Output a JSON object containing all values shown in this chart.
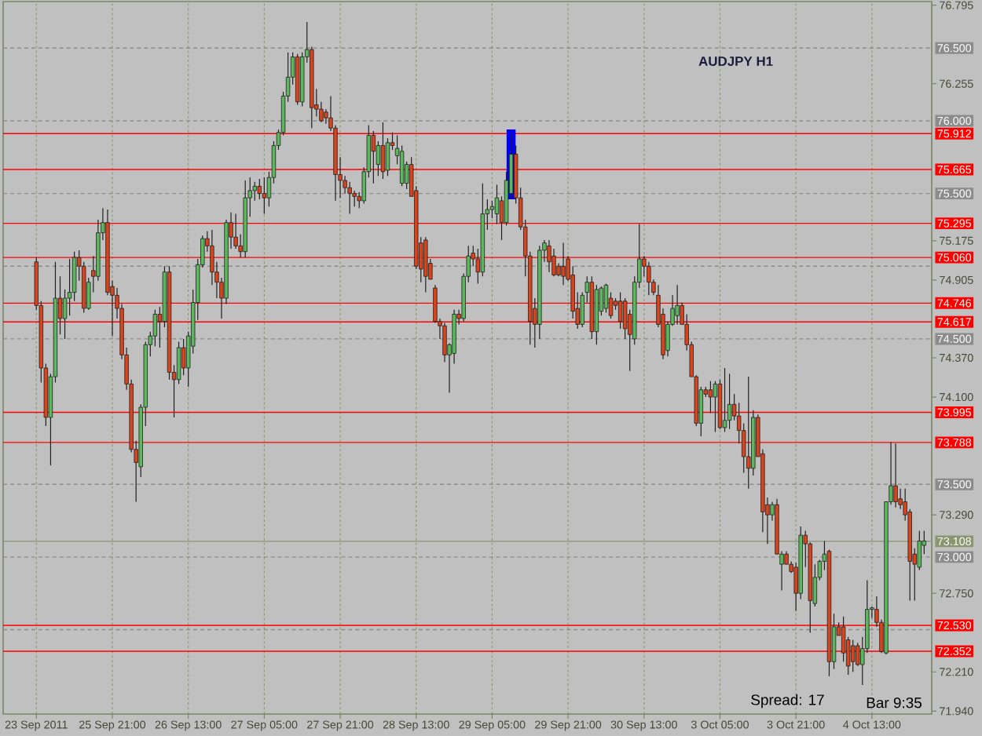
{
  "chart_data": {
    "type": "candlestick",
    "title": "AUDJPY H1",
    "annotations": [
      "Spread: 17",
      "Bar 9:35"
    ],
    "categories": [
      "23 Sep 2011",
      null,
      null,
      null,
      null,
      null,
      null,
      null,
      null,
      null,
      null,
      null,
      null,
      null,
      null,
      null,
      "25 Sep 21:00",
      null,
      null,
      null,
      null,
      null,
      null,
      null,
      null,
      null,
      null,
      null,
      null,
      null,
      null,
      null,
      "26 Sep 13:00",
      null,
      null,
      null,
      null,
      null,
      null,
      null,
      null,
      null,
      null,
      null,
      null,
      null,
      null,
      null,
      "27 Sep 05:00",
      null,
      null,
      null,
      null,
      null,
      null,
      null,
      null,
      null,
      null,
      null,
      null,
      null,
      null,
      null,
      "27 Sep 21:00",
      null,
      null,
      null,
      null,
      null,
      null,
      null,
      null,
      null,
      null,
      null,
      null,
      null,
      null,
      null,
      "28 Sep 13:00",
      null,
      null,
      null,
      null,
      null,
      null,
      null,
      null,
      null,
      null,
      null,
      null,
      null,
      null,
      null,
      "29 Sep 05:00",
      null,
      null,
      null,
      null,
      null,
      null,
      null,
      null,
      null,
      null,
      null,
      null,
      null,
      null,
      null,
      "29 Sep 21:00",
      null,
      null,
      null,
      null,
      null,
      null,
      null,
      null,
      null,
      null,
      null,
      null,
      null,
      null,
      null,
      "30 Sep 13:00",
      null,
      null,
      null,
      null,
      null,
      null,
      null,
      null,
      null,
      null,
      null,
      null,
      null,
      null,
      null,
      "3 Oct 05:00",
      null,
      null,
      null,
      null,
      null,
      null,
      null,
      null,
      null,
      null,
      null,
      null,
      null,
      null,
      null,
      "3 Oct 21:00",
      null,
      null,
      null,
      null,
      null,
      null,
      null,
      null,
      null,
      null,
      null,
      null,
      null,
      null,
      null,
      "4 Oct 13:00",
      null,
      null,
      null,
      null,
      null,
      null,
      null,
      null,
      null,
      null,
      null
    ],
    "ohlc": [
      [
        75.03,
        75.06,
        74.7,
        74.73
      ],
      [
        74.73,
        74.76,
        74.2,
        74.3
      ],
      [
        74.3,
        74.33,
        73.9,
        73.96
      ],
      [
        73.96,
        74.26,
        73.63,
        74.24
      ],
      [
        74.24,
        75.03,
        74.2,
        74.78
      ],
      [
        74.78,
        74.93,
        74.53,
        74.64
      ],
      [
        74.64,
        74.84,
        74.5,
        74.78
      ],
      [
        74.78,
        75.05,
        74.66,
        74.82
      ],
      [
        74.82,
        75.1,
        74.76,
        75.06
      ],
      [
        75.06,
        75.11,
        74.9,
        75.0
      ],
      [
        75.0,
        75.03,
        74.68,
        74.71
      ],
      [
        74.71,
        74.92,
        74.7,
        74.89
      ],
      [
        74.97,
        75.07,
        74.82,
        74.93
      ],
      [
        74.93,
        75.32,
        74.9,
        75.23
      ],
      [
        75.23,
        75.4,
        75.18,
        75.3
      ],
      [
        75.3,
        75.39,
        74.8,
        74.82
      ],
      [
        74.86,
        74.9,
        74.52,
        74.8
      ],
      [
        74.8,
        74.85,
        74.64,
        74.71
      ],
      [
        74.71,
        74.74,
        74.36,
        74.39
      ],
      [
        74.39,
        74.44,
        74.15,
        74.19
      ],
      [
        74.19,
        74.22,
        73.72,
        73.74
      ],
      [
        73.74,
        73.8,
        73.38,
        73.65
      ],
      [
        73.62,
        74.05,
        73.55,
        74.03
      ],
      [
        74.03,
        74.48,
        73.9,
        74.46
      ],
      [
        74.46,
        74.55,
        74.38,
        74.52
      ],
      [
        74.52,
        74.7,
        74.45,
        74.67
      ],
      [
        74.67,
        74.72,
        74.44,
        74.62
      ],
      [
        74.62,
        75.0,
        74.58,
        74.96
      ],
      [
        74.96,
        75.0,
        74.22,
        74.27
      ],
      [
        74.27,
        74.32,
        73.96,
        74.22
      ],
      [
        74.22,
        74.48,
        74.19,
        74.44
      ],
      [
        74.44,
        74.5,
        74.25,
        74.3
      ],
      [
        74.3,
        74.55,
        74.17,
        74.52
      ],
      [
        74.45,
        74.84,
        74.4,
        74.75
      ],
      [
        74.75,
        75.05,
        74.63,
        75.01
      ],
      [
        75.01,
        75.21,
        74.99,
        75.19
      ],
      [
        75.19,
        75.24,
        75.1,
        75.14
      ],
      [
        75.14,
        75.25,
        74.87,
        74.96
      ],
      [
        74.96,
        75.03,
        74.78,
        74.89
      ],
      [
        74.89,
        74.92,
        74.64,
        74.78
      ],
      [
        74.78,
        75.32,
        74.74,
        75.3
      ],
      [
        75.3,
        75.37,
        75.12,
        75.2
      ],
      [
        75.2,
        75.36,
        75.12,
        75.14
      ],
      [
        75.14,
        75.22,
        75.06,
        75.1
      ],
      [
        75.1,
        75.59,
        75.06,
        75.47
      ],
      [
        75.47,
        75.61,
        75.34,
        75.52
      ],
      [
        75.52,
        75.58,
        75.45,
        75.55
      ],
      [
        75.55,
        75.6,
        75.46,
        75.5
      ],
      [
        75.5,
        75.61,
        75.36,
        75.47
      ],
      [
        75.47,
        75.65,
        75.41,
        75.61
      ],
      [
        75.61,
        75.86,
        75.57,
        75.83
      ],
      [
        75.83,
        75.94,
        75.8,
        75.92
      ],
      [
        75.92,
        76.2,
        75.9,
        76.17
      ],
      [
        76.17,
        76.47,
        76.13,
        76.3
      ],
      [
        76.3,
        76.47,
        76.25,
        76.44
      ],
      [
        76.44,
        76.46,
        76.11,
        76.13
      ],
      [
        76.13,
        76.47,
        76.1,
        76.44
      ],
      [
        76.44,
        76.68,
        76.4,
        76.49
      ],
      [
        76.49,
        76.51,
        75.95,
        76.09
      ],
      [
        76.11,
        76.22,
        76.03,
        76.08
      ],
      [
        76.08,
        76.13,
        75.99,
        76.0
      ],
      [
        76.06,
        76.08,
        75.98,
        76.02
      ],
      [
        76.02,
        76.17,
        75.93,
        75.95
      ],
      [
        75.95,
        75.97,
        75.45,
        75.63
      ],
      [
        75.63,
        75.75,
        75.47,
        75.59
      ],
      [
        75.59,
        75.62,
        75.5,
        75.54
      ],
      [
        75.54,
        75.58,
        75.36,
        75.5
      ],
      [
        75.5,
        75.52,
        75.41,
        75.48
      ],
      [
        75.48,
        75.51,
        75.4,
        75.45
      ],
      [
        75.45,
        75.68,
        75.43,
        75.65
      ],
      [
        75.65,
        75.97,
        75.61,
        75.9
      ],
      [
        75.9,
        75.93,
        75.57,
        75.79
      ],
      [
        75.7,
        75.86,
        75.62,
        75.83
      ],
      [
        75.83,
        75.99,
        75.6,
        75.65
      ],
      [
        75.66,
        75.88,
        75.62,
        75.85
      ],
      [
        75.85,
        75.92,
        75.8,
        75.83
      ],
      [
        75.76,
        75.9,
        75.7,
        75.81
      ],
      [
        75.57,
        75.83,
        75.55,
        75.79
      ],
      [
        75.57,
        75.72,
        75.53,
        75.7
      ],
      [
        75.7,
        75.75,
        75.48,
        75.48
      ],
      [
        75.52,
        75.55,
        74.98,
        75.0
      ],
      [
        75.16,
        75.2,
        74.89,
        74.98
      ],
      [
        75.18,
        75.2,
        74.82,
        74.93
      ],
      [
        75.02,
        75.05,
        74.91,
        74.91
      ],
      [
        74.85,
        74.87,
        74.61,
        74.62
      ],
      [
        74.62,
        74.64,
        74.5,
        74.59
      ],
      [
        74.59,
        74.61,
        74.34,
        74.39
      ],
      [
        74.39,
        74.47,
        74.13,
        74.46
      ],
      [
        74.4,
        74.7,
        74.33,
        74.67
      ],
      [
        74.67,
        74.7,
        74.6,
        74.64
      ],
      [
        74.64,
        74.95,
        74.62,
        74.93
      ],
      [
        74.93,
        75.14,
        74.89,
        75.07
      ],
      [
        75.09,
        75.14,
        75.0,
        75.05
      ],
      [
        75.05,
        75.12,
        74.88,
        74.96
      ],
      [
        74.96,
        75.57,
        74.93,
        75.36
      ],
      [
        75.36,
        75.46,
        75.25,
        75.39
      ],
      [
        75.39,
        75.45,
        75.33,
        75.41
      ],
      [
        75.36,
        75.56,
        75.29,
        75.47
      ],
      [
        75.45,
        75.48,
        75.18,
        75.3
      ],
      [
        75.3,
        75.65,
        75.28,
        75.59
      ],
      [
        75.5,
        75.92,
        75.46,
        75.77
      ],
      [
        75.77,
        75.83,
        75.43,
        75.47
      ],
      [
        75.47,
        75.54,
        75.25,
        75.27
      ],
      [
        75.27,
        75.32,
        74.93,
        75.07
      ],
      [
        75.07,
        75.1,
        74.46,
        74.62
      ],
      [
        74.71,
        74.78,
        74.44,
        74.6
      ],
      [
        74.6,
        75.14,
        74.5,
        75.11
      ],
      [
        75.11,
        75.18,
        75.03,
        75.16
      ],
      [
        75.14,
        75.18,
        74.96,
        75.03
      ],
      [
        75.07,
        75.12,
        74.93,
        74.94
      ],
      [
        75.0,
        75.02,
        74.93,
        74.94
      ],
      [
        75.0,
        75.16,
        74.87,
        74.93
      ],
      [
        75.05,
        75.07,
        74.9,
        74.91
      ],
      [
        74.94,
        75.0,
        74.64,
        74.69
      ],
      [
        74.71,
        74.82,
        74.57,
        74.6
      ],
      [
        74.6,
        74.82,
        74.58,
        74.8
      ],
      [
        74.82,
        74.93,
        74.75,
        74.89
      ],
      [
        74.89,
        74.93,
        74.5,
        74.55
      ],
      [
        74.55,
        74.87,
        74.46,
        74.84
      ],
      [
        74.69,
        74.86,
        74.66,
        74.85
      ],
      [
        74.71,
        74.88,
        74.68,
        74.87
      ],
      [
        74.78,
        74.82,
        74.64,
        74.66
      ],
      [
        74.76,
        74.78,
        74.7,
        74.73
      ],
      [
        74.76,
        74.82,
        74.57,
        74.62
      ],
      [
        74.76,
        74.78,
        74.5,
        74.57
      ],
      [
        74.67,
        74.7,
        74.28,
        74.53
      ],
      [
        74.5,
        74.93,
        74.46,
        74.89
      ],
      [
        74.89,
        75.29,
        74.85,
        75.05
      ],
      [
        75.05,
        75.07,
        74.93,
        75.0
      ],
      [
        75.0,
        75.03,
        74.8,
        74.89
      ],
      [
        74.89,
        74.91,
        74.8,
        74.82
      ],
      [
        74.8,
        74.87,
        74.58,
        74.6
      ],
      [
        74.67,
        74.71,
        74.36,
        74.39
      ],
      [
        74.42,
        74.62,
        74.38,
        74.6
      ],
      [
        74.6,
        74.8,
        74.59,
        74.71
      ],
      [
        74.66,
        74.87,
        74.6,
        74.73
      ],
      [
        74.73,
        74.75,
        74.6,
        74.6
      ],
      [
        74.6,
        74.67,
        74.42,
        74.46
      ],
      [
        74.46,
        74.48,
        74.24,
        74.24
      ],
      [
        74.24,
        74.25,
        73.9,
        73.92
      ],
      [
        73.92,
        74.17,
        73.83,
        74.15
      ],
      [
        74.15,
        74.17,
        74.1,
        74.12
      ],
      [
        74.15,
        74.21,
        73.99,
        74.1
      ],
      [
        74.1,
        74.21,
        73.86,
        74.19
      ],
      [
        74.19,
        74.22,
        73.88,
        73.89
      ],
      [
        73.89,
        74.3,
        73.86,
        73.94
      ],
      [
        73.94,
        74.26,
        73.88,
        74.05
      ],
      [
        74.05,
        74.12,
        73.94,
        73.97
      ],
      [
        73.97,
        74.06,
        73.78,
        73.87
      ],
      [
        73.87,
        73.92,
        73.58,
        73.69
      ],
      [
        73.69,
        74.24,
        73.47,
        73.61
      ],
      [
        73.61,
        74.01,
        73.56,
        73.96
      ],
      [
        73.96,
        73.98,
        73.69,
        73.69
      ],
      [
        73.71,
        73.74,
        73.17,
        73.31
      ],
      [
        73.36,
        73.41,
        73.09,
        73.29
      ],
      [
        73.29,
        73.38,
        73.25,
        73.36
      ],
      [
        73.36,
        73.4,
        73.02,
        73.02
      ],
      [
        72.95,
        73.04,
        72.77,
        73.02
      ],
      [
        73.02,
        73.04,
        72.95,
        72.95
      ],
      [
        72.95,
        72.97,
        72.89,
        72.9
      ],
      [
        72.93,
        72.96,
        72.63,
        72.75
      ],
      [
        72.75,
        73.21,
        72.71,
        73.15
      ],
      [
        73.15,
        73.18,
        72.93,
        73.09
      ],
      [
        73.09,
        73.1,
        72.48,
        72.7
      ],
      [
        72.68,
        72.95,
        72.66,
        72.86
      ],
      [
        72.86,
        72.98,
        72.84,
        72.97
      ],
      [
        72.97,
        73.11,
        72.91,
        73.02
      ],
      [
        73.04,
        73.05,
        72.18,
        72.28
      ],
      [
        72.28,
        72.61,
        72.23,
        72.52
      ],
      [
        72.52,
        72.55,
        72.46,
        72.46
      ],
      [
        72.52,
        72.59,
        72.28,
        72.34
      ],
      [
        72.43,
        72.45,
        72.19,
        72.25
      ],
      [
        72.39,
        72.43,
        72.21,
        72.28
      ],
      [
        72.39,
        72.41,
        72.25,
        72.26
      ],
      [
        72.26,
        72.45,
        72.12,
        72.37
      ],
      [
        72.37,
        72.84,
        72.34,
        72.64
      ],
      [
        72.64,
        72.66,
        72.58,
        72.65
      ],
      [
        72.64,
        72.73,
        72.52,
        72.55
      ],
      [
        72.55,
        72.57,
        72.34,
        72.35
      ],
      [
        72.34,
        73.38,
        72.33,
        73.38
      ],
      [
        73.38,
        73.79,
        73.36,
        73.49
      ],
      [
        73.49,
        73.78,
        73.34,
        73.38
      ],
      [
        73.4,
        73.47,
        73.33,
        73.36
      ],
      [
        73.38,
        73.47,
        73.25,
        73.29
      ],
      [
        73.31,
        73.33,
        72.7,
        72.97
      ],
      [
        73.02,
        73.06,
        72.7,
        72.95
      ],
      [
        72.93,
        73.18,
        72.91,
        73.11
      ],
      [
        73.08,
        73.18,
        73.02,
        73.11
      ]
    ],
    "colors": [
      "#d9441c",
      "#d9441c",
      "#d9441c",
      "#5cb85c",
      "#5cb85c",
      "#d9441c",
      "#5cb85c",
      "#5cb85c",
      "#5cb85c",
      "#d9441c",
      "#d9441c",
      "#5cb85c",
      "#d9441c",
      "#5cb85c",
      "#5cb85c",
      "#d9441c",
      "#d9441c",
      "#d9441c",
      "#d9441c",
      "#d9441c",
      "#d9441c",
      "#d9441c",
      "#5cb85c",
      "#5cb85c",
      "#5cb85c",
      "#5cb85c",
      "#d9441c",
      "#5cb85c",
      "#d9441c",
      "#d9441c",
      "#5cb85c",
      "#d9441c",
      "#5cb85c",
      "#5cb85c",
      "#5cb85c",
      "#5cb85c",
      "#d9441c",
      "#d9441c",
      "#d9441c",
      "#d9441c",
      "#5cb85c",
      "#d9441c",
      "#d9441c",
      "#d9441c",
      "#5cb85c",
      "#5cb85c",
      "#5cb85c",
      "#d9441c",
      "#d9441c",
      "#5cb85c",
      "#5cb85c",
      "#5cb85c",
      "#5cb85c",
      "#5cb85c",
      "#5cb85c",
      "#d9441c",
      "#5cb85c",
      "#5cb85c",
      "#d9441c",
      "#d9441c",
      "#d9441c",
      "#d9441c",
      "#d9441c",
      "#d9441c",
      "#d9441c",
      "#d9441c",
      "#d9441c",
      "#d9441c",
      "#d9441c",
      "#5cb85c",
      "#5cb85c",
      "#d9441c",
      "#5cb85c",
      "#d9441c",
      "#5cb85c",
      "#d9441c",
      "#5cb85c",
      "#5cb85c",
      "#5cb85c",
      "#d9441c",
      "#d9441c",
      "#d9441c",
      "#d9441c",
      "#d9441c",
      "#d9441c",
      "#d9441c",
      "#d9441c",
      "#5cb85c",
      "#5cb85c",
      "#d9441c",
      "#5cb85c",
      "#5cb85c",
      "#d9441c",
      "#d9441c",
      "#5cb85c",
      "#5cb85c",
      "#5cb85c",
      "#5cb85c",
      "#d9441c",
      "#5cb85c",
      "#5cb85c",
      "#d9441c",
      "#d9441c",
      "#d9441c",
      "#d9441c",
      "#d9441c",
      "#5cb85c",
      "#5cb85c",
      "#d9441c",
      "#d9441c",
      "#d9441c",
      "#d9441c",
      "#d9441c",
      "#d9441c",
      "#d9441c",
      "#5cb85c",
      "#5cb85c",
      "#d9441c",
      "#5cb85c",
      "#5cb85c",
      "#5cb85c",
      "#d9441c",
      "#d9441c",
      "#d9441c",
      "#d9441c",
      "#d9441c",
      "#5cb85c",
      "#5cb85c",
      "#d9441c",
      "#d9441c",
      "#d9441c",
      "#d9441c",
      "#d9441c",
      "#5cb85c",
      "#5cb85c",
      "#5cb85c",
      "#d9441c",
      "#d9441c",
      "#d9441c",
      "#d9441c",
      "#5cb85c",
      "#d9441c",
      "#d9441c",
      "#5cb85c",
      "#d9441c",
      "#5cb85c",
      "#5cb85c",
      "#d9441c",
      "#d9441c",
      "#d9441c",
      "#d9441c",
      "#5cb85c",
      "#d9441c",
      "#d9441c",
      "#d9441c",
      "#5cb85c",
      "#d9441c",
      "#5cb85c",
      "#d9441c",
      "#d9441c",
      "#d9441c",
      "#5cb85c",
      "#d9441c",
      "#d9441c",
      "#5cb85c",
      "#5cb85c",
      "#5cb85c",
      "#d9441c",
      "#5cb85c",
      "#d9441c",
      "#d9441c",
      "#d9441c",
      "#d9441c",
      "#d9441c",
      "#5cb85c",
      "#5cb85c",
      "#5cb85c",
      "#d9441c",
      "#d9441c",
      "#5cb85c",
      "#5cb85c",
      "#d9441c",
      "#d9441c",
      "#d9441c",
      "#d9441c",
      "#d9441c",
      "#5cb85c",
      "#5cb85c"
    ],
    "series": [
      {
        "type": "bar",
        "color": "#0000ff",
        "values": [
          null,
          null,
          null,
          null,
          null,
          null,
          null,
          null,
          null,
          null,
          null,
          null,
          null,
          null,
          null,
          null,
          null,
          null,
          null,
          null,
          null,
          null,
          null,
          null,
          null,
          null,
          null,
          null,
          null,
          null,
          null,
          null,
          null,
          null,
          null,
          null,
          null,
          null,
          null,
          null,
          null,
          null,
          null,
          null,
          null,
          null,
          null,
          null,
          null,
          null,
          null,
          null,
          null,
          null,
          null,
          null,
          null,
          null,
          null,
          null,
          null,
          null,
          null,
          null,
          null,
          null,
          null,
          null,
          null,
          null,
          null,
          null,
          null,
          null,
          null,
          null,
          null,
          null,
          null,
          null,
          null,
          null,
          null,
          null,
          null,
          null,
          null,
          null,
          null,
          null,
          null,
          null,
          null,
          null,
          null,
          null,
          null,
          null,
          null,
          null,
          0.48,
          null,
          null,
          null,
          null,
          null,
          null,
          null,
          null,
          null,
          null,
          null,
          null,
          null,
          null,
          null,
          null,
          null,
          null,
          null,
          null,
          null,
          null,
          null,
          null,
          null,
          null,
          null,
          null,
          null,
          null,
          null,
          null,
          null,
          null,
          null,
          null,
          null,
          null,
          null,
          null,
          null,
          null,
          null,
          null,
          null,
          null,
          null,
          null,
          null,
          null,
          null,
          null,
          null,
          null,
          null,
          null,
          null,
          null,
          null,
          null,
          null,
          null,
          null,
          null,
          null,
          null,
          null,
          null,
          null,
          null,
          null,
          null,
          null,
          null,
          null,
          null,
          null,
          null,
          null,
          null,
          null,
          null,
          null,
          null,
          null,
          null,
          null
        ],
        "base": [
          null,
          null,
          null,
          null,
          null,
          null,
          null,
          null,
          null,
          null,
          null,
          null,
          null,
          null,
          null,
          null,
          null,
          null,
          null,
          null,
          null,
          null,
          null,
          null,
          null,
          null,
          null,
          null,
          null,
          null,
          null,
          null,
          null,
          null,
          null,
          null,
          null,
          null,
          null,
          null,
          null,
          null,
          null,
          null,
          null,
          null,
          null,
          null,
          null,
          null,
          null,
          null,
          null,
          null,
          null,
          null,
          null,
          null,
          null,
          null,
          null,
          null,
          null,
          null,
          null,
          null,
          null,
          null,
          null,
          null,
          null,
          null,
          null,
          null,
          null,
          null,
          null,
          null,
          null,
          null,
          null,
          null,
          null,
          null,
          null,
          null,
          null,
          null,
          null,
          null,
          null,
          null,
          null,
          null,
          null,
          null,
          null,
          null,
          null,
          null,
          75.46,
          null,
          null,
          null,
          null,
          null,
          null,
          null,
          null,
          null,
          null,
          null,
          null,
          null,
          null,
          null,
          null,
          null,
          null,
          null,
          null,
          null,
          null,
          null,
          null,
          null,
          null,
          null,
          null,
          null,
          null,
          null,
          null,
          null,
          null,
          null,
          null,
          null,
          null,
          null,
          null,
          null,
          null,
          null,
          null,
          null,
          null,
          null,
          null,
          null,
          null,
          null,
          null,
          null,
          null,
          null,
          null,
          null,
          null,
          null,
          null,
          null,
          null,
          null,
          null,
          null,
          null,
          null,
          null,
          null,
          null,
          null,
          null,
          null,
          null,
          null,
          null,
          null,
          null,
          null,
          null,
          null,
          null,
          null,
          null,
          null,
          null,
          null
        ]
      }
    ],
    "ylim": [
      71.92,
      76.82
    ],
    "yticks": [
      {
        "value": 76.795,
        "label": "76.795"
      },
      {
        "value": 76.255,
        "label": "76.255"
      },
      {
        "value": 75.175,
        "label": "75.175"
      },
      {
        "value": 74.905,
        "label": "74.905"
      },
      {
        "value": 74.37,
        "label": "74.370"
      },
      {
        "value": 74.1,
        "label": "74.100"
      },
      {
        "value": 73.29,
        "label": "73.290"
      },
      {
        "value": 72.75,
        "label": "72.750"
      },
      {
        "value": 72.21,
        "label": "72.210"
      },
      {
        "value": 71.94,
        "label": "71.940"
      }
    ],
    "grid": "x",
    "ref_lines": [
      {
        "axis": "y",
        "value": 76.5,
        "label": "76.500",
        "color": "#8c8c8c",
        "line_style": "dashed"
      },
      {
        "axis": "y",
        "value": 76.0,
        "label": "76.000",
        "color": "#8c8c8c",
        "line_style": "dashed"
      },
      {
        "axis": "y",
        "value": 75.5,
        "label": "75.500",
        "color": "#8c8c8c",
        "line_style": "dashed"
      },
      {
        "axis": "y",
        "value": 75.0,
        "label": null,
        "color": "#8c8c8c",
        "line_style": "dashed"
      },
      {
        "axis": "y",
        "value": 74.5,
        "label": "74.500",
        "color": "#8c8c8c",
        "line_style": "dashed"
      },
      {
        "axis": "y",
        "value": 73.5,
        "label": "73.500",
        "color": "#8c8c8c",
        "line_style": "dashed"
      },
      {
        "axis": "y",
        "value": 73.0,
        "label": "73.000",
        "color": "#8c8c8c",
        "line_style": "dashed"
      },
      {
        "axis": "y",
        "value": 72.5,
        "label": null,
        "color": "#8c8c8c",
        "line_style": "dashed"
      },
      {
        "axis": "y",
        "value": 73.108,
        "label": "73.108",
        "color": "#8a9670",
        "line_style": "solid"
      },
      {
        "axis": "y",
        "value": 75.912,
        "label": "75.912",
        "color": "#ff0000",
        "line_style": "solid"
      },
      {
        "axis": "y",
        "value": 75.665,
        "label": "75.665",
        "color": "#ff0000",
        "line_style": "solid"
      },
      {
        "axis": "y",
        "value": 75.295,
        "label": "75.295",
        "color": "#ff0000",
        "line_style": "solid"
      },
      {
        "axis": "y",
        "value": 75.06,
        "label": "75.060",
        "color": "#ff0000",
        "line_style": "solid"
      },
      {
        "axis": "y",
        "value": 74.746,
        "label": "74.746",
        "color": "#ff0000",
        "line_style": "solid"
      },
      {
        "axis": "y",
        "value": 74.617,
        "label": "74.617",
        "color": "#ff0000",
        "line_style": "solid"
      },
      {
        "axis": "y",
        "value": 73.995,
        "label": "73.995",
        "color": "#ff0000",
        "line_style": "solid"
      },
      {
        "axis": "y",
        "value": 73.788,
        "label": "73.788",
        "color": "#ff0000",
        "line_style": "solid"
      },
      {
        "axis": "y",
        "value": 72.53,
        "label": "72.530",
        "color": "#ff0000",
        "line_style": "solid"
      },
      {
        "axis": "y",
        "value": 72.352,
        "label": "72.352",
        "color": "#ff0000",
        "line_style": "solid"
      }
    ]
  }
}
